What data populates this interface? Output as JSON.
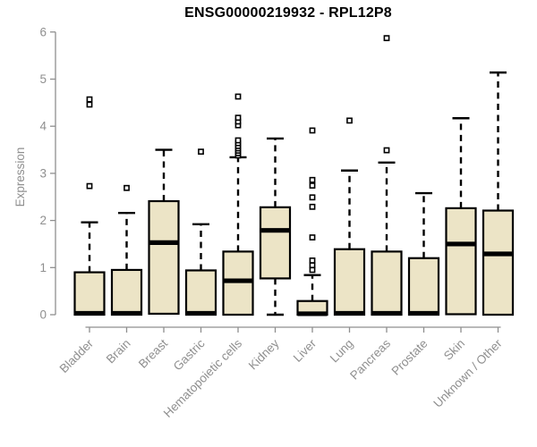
{
  "chart_data": {
    "type": "boxplot",
    "title": "ENSG00000219932 - RPL12P8",
    "ylabel": "Expression",
    "xlabel": "",
    "ylim": [
      0,
      6
    ],
    "yticks": [
      0,
      1,
      2,
      3,
      4,
      5,
      6
    ],
    "grid": false,
    "legend": false,
    "categories": [
      "Bladder",
      "Brain",
      "Breast",
      "Gastric",
      "Hematopoietic cells",
      "Kidney",
      "Liver",
      "Lung",
      "Pancreas",
      "Prostate",
      "Skin",
      "Unknown / Other"
    ],
    "boxes": [
      {
        "label": "Bladder",
        "whisker_low": 0,
        "q1": 0,
        "median": 0.03,
        "q3": 0.9,
        "whisker_high": 1.96,
        "outliers": [
          2.73,
          4.46,
          4.57
        ]
      },
      {
        "label": "Brain",
        "whisker_low": 0,
        "q1": 0,
        "median": 0.03,
        "q3": 0.95,
        "whisker_high": 2.16,
        "outliers": [
          2.69
        ]
      },
      {
        "label": "Breast",
        "whisker_low": 0,
        "q1": 0.02,
        "median": 1.53,
        "q3": 2.41,
        "whisker_high": 3.5,
        "outliers": []
      },
      {
        "label": "Gastric",
        "whisker_low": 0,
        "q1": 0,
        "median": 0.03,
        "q3": 0.94,
        "whisker_high": 1.92,
        "outliers": [
          3.46
        ]
      },
      {
        "label": "Hematopoietic cells",
        "whisker_low": 0,
        "q1": 0,
        "median": 0.72,
        "q3": 1.34,
        "whisker_high": 3.34,
        "outliers": [
          3.38,
          3.43,
          3.48,
          3.53,
          3.58,
          3.64,
          3.7,
          4.02,
          4.1,
          4.18,
          4.63
        ]
      },
      {
        "label": "Kidney",
        "whisker_low": 0,
        "q1": 0.77,
        "median": 1.79,
        "q3": 2.28,
        "whisker_high": 3.74,
        "outliers": []
      },
      {
        "label": "Liver",
        "whisker_low": 0,
        "q1": 0,
        "median": 0.02,
        "q3": 0.29,
        "whisker_high": 0.84,
        "outliers": [
          0.95,
          1.05,
          1.15,
          1.64,
          2.29,
          2.49,
          2.74,
          2.86,
          3.91
        ]
      },
      {
        "label": "Lung",
        "whisker_low": 0,
        "q1": 0,
        "median": 0.03,
        "q3": 1.39,
        "whisker_high": 3.06,
        "outliers": [
          4.12
        ]
      },
      {
        "label": "Pancreas",
        "whisker_low": 0,
        "q1": 0,
        "median": 0.03,
        "q3": 1.34,
        "whisker_high": 3.23,
        "outliers": [
          3.49,
          5.87
        ]
      },
      {
        "label": "Prostate",
        "whisker_low": 0,
        "q1": 0,
        "median": 0.03,
        "q3": 1.2,
        "whisker_high": 2.58,
        "outliers": []
      },
      {
        "label": "Skin",
        "whisker_low": 0,
        "q1": 0.01,
        "median": 1.5,
        "q3": 2.26,
        "whisker_high": 4.17,
        "outliers": []
      },
      {
        "label": "Unknown / Other",
        "whisker_low": 0,
        "q1": 0,
        "median": 1.29,
        "q3": 2.21,
        "whisker_high": 5.14,
        "outliers": []
      }
    ],
    "colors": {
      "box_fill": "#ece4c6",
      "box_stroke": "#000000",
      "median": "#000000",
      "whisker": "#000000",
      "outlier_stroke": "#000000",
      "outlier_fill": "#ffffff",
      "axis": "#8f8f8f",
      "tick_label": "#8f8f8f",
      "title": "#000000",
      "background": "#ffffff"
    }
  }
}
